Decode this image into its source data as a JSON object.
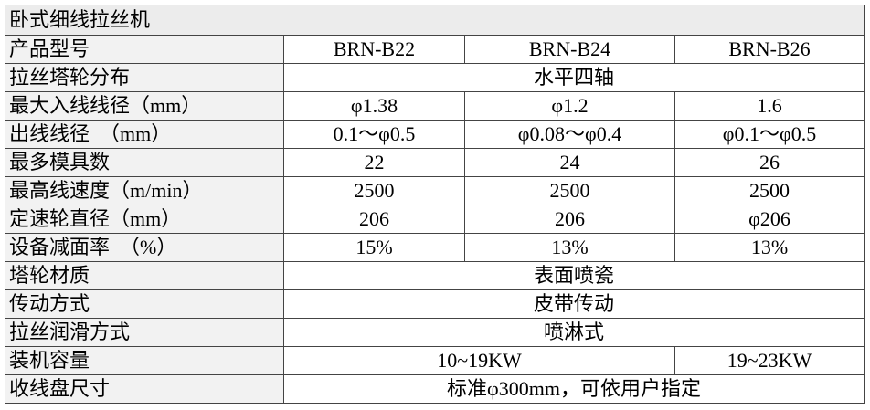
{
  "table": {
    "title": "卧式细线拉丝机",
    "rows": [
      [
        "产品型号",
        "BRN-B22",
        "BRN-B24",
        "BRN-B26"
      ],
      [
        "拉丝塔轮分布",
        "水平四轴"
      ],
      [
        "最大入线线径（mm）",
        "φ1.38",
        "φ1.2",
        "1.6"
      ],
      [
        "出线线径　（mm）",
        "0.1～φ0.5",
        "φ0.08～φ0.4",
        "φ0.1～φ0.5"
      ],
      [
        "最多模具数",
        "22",
        "24",
        "26"
      ],
      [
        "最高线速度（m/min）",
        "2500",
        "2500",
        "2500"
      ],
      [
        "定速轮直径（mm）",
        "206",
        "206",
        "φ206"
      ],
      [
        "设备减面率　（%）",
        "15%",
        "13%",
        "13%"
      ],
      [
        "塔轮材质",
        "表面喷瓷"
      ],
      [
        "传动方式",
        "皮带传动"
      ],
      [
        "拉丝润滑方式",
        "喷淋式"
      ],
      [
        "装机容量",
        "10~19KW",
        "19~23KW"
      ],
      [
        "收线盘尺寸",
        "标准φ300mm，可依用户指定"
      ]
    ]
  }
}
